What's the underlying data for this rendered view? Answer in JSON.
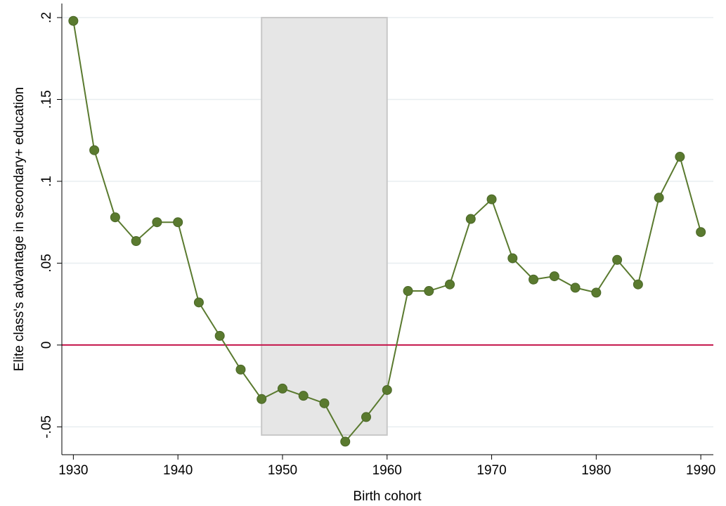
{
  "chart_data": {
    "type": "line",
    "x_label": "Birth cohort",
    "y_label": "Elite class's advantage in secondary+ education",
    "x": [
      1930,
      1932,
      1934,
      1936,
      1938,
      1940,
      1942,
      1944,
      1946,
      1948,
      1950,
      1952,
      1954,
      1956,
      1958,
      1960,
      1962,
      1964,
      1966,
      1968,
      1970,
      1972,
      1974,
      1976,
      1978,
      1980,
      1982,
      1984,
      1986,
      1988,
      1990
    ],
    "series": [
      {
        "color": "#5a7a2f",
        "values": [
          0.198,
          0.119,
          0.078,
          0.0635,
          0.075,
          0.075,
          0.026,
          0.0056,
          -0.015,
          -0.033,
          -0.0266,
          -0.031,
          -0.0356,
          -0.059,
          -0.044,
          -0.0275,
          0.033,
          0.033,
          0.037,
          0.077,
          0.089,
          0.053,
          0.04,
          0.042,
          0.035,
          0.032,
          0.052,
          0.037,
          0.09,
          0.115,
          0.069
        ]
      }
    ],
    "shaded_region": {
      "x": [
        1948,
        1960
      ],
      "y": [
        -0.055,
        0.2
      ],
      "color": "#e6e6e6"
    },
    "reference_line": {
      "y": 0,
      "color": "#c4144a"
    },
    "xlim": [
      1928.9,
      1991.2
    ],
    "ylim": [
      -0.067,
      0.2086
    ],
    "xticks": [
      1930,
      1940,
      1950,
      1960,
      1970,
      1980,
      1990
    ],
    "yticks": [
      {
        "value": -0.05,
        "label": "-.05"
      },
      0,
      {
        "value": 0.05,
        "label": ".05"
      },
      {
        "value": 0.1,
        "label": ".1"
      },
      {
        "value": 0.15,
        "label": ".15"
      },
      {
        "value": 0.2,
        "label": ".2"
      }
    ],
    "grid": true
  }
}
